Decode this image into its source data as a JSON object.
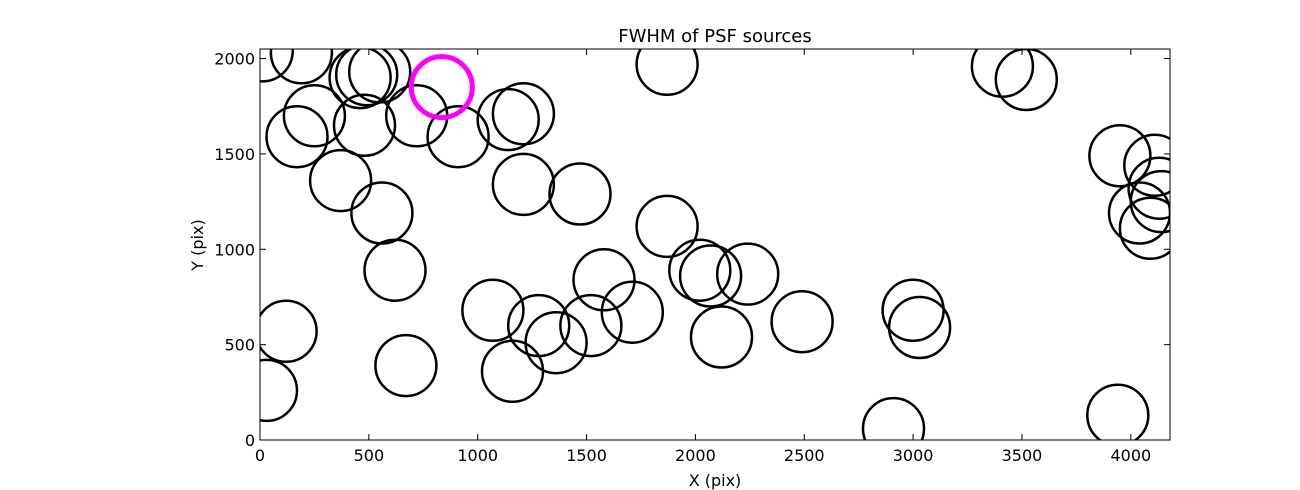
{
  "chart_data": {
    "type": "scatter",
    "title": "FWHM of PSF sources",
    "xlabel": "X (pix)",
    "ylabel": "Y (pix)",
    "xlim": [
      0,
      4180
    ],
    "ylim": [
      0,
      2050
    ],
    "xticks": [
      0,
      500,
      1000,
      1500,
      2000,
      2500,
      3000,
      3500,
      4000
    ],
    "yticks": [
      0,
      500,
      1000,
      1500,
      2000
    ],
    "grid": false,
    "marker": "circle (unfilled)",
    "source_radius": 140,
    "colors": {
      "source": "#000000",
      "highlight": "#ff00ff"
    },
    "series": [
      {
        "points": [
          [
            10,
            2040
          ],
          [
            190,
            2030
          ],
          [
            460,
            1900
          ],
          [
            490,
            1915
          ],
          [
            550,
            1930
          ],
          [
            250,
            1700
          ],
          [
            170,
            1590
          ],
          [
            480,
            1650
          ],
          [
            720,
            1700
          ],
          [
            910,
            1590
          ],
          [
            1140,
            1680
          ],
          [
            1210,
            1710
          ],
          [
            1870,
            1970
          ],
          [
            3410,
            1960
          ],
          [
            3520,
            1890
          ],
          [
            370,
            1360
          ],
          [
            560,
            1190
          ],
          [
            1210,
            1340
          ],
          [
            1470,
            1290
          ],
          [
            1870,
            1120
          ],
          [
            3950,
            1490
          ],
          [
            4040,
            1190
          ],
          [
            4090,
            1110
          ],
          [
            4110,
            1440
          ],
          [
            4130,
            1320
          ],
          [
            4140,
            1250
          ],
          [
            620,
            890
          ],
          [
            1580,
            840
          ],
          [
            2020,
            890
          ],
          [
            2070,
            860
          ],
          [
            2240,
            870
          ],
          [
            120,
            570
          ],
          [
            1070,
            680
          ],
          [
            1280,
            600
          ],
          [
            1360,
            510
          ],
          [
            1520,
            600
          ],
          [
            1710,
            670
          ],
          [
            2120,
            540
          ],
          [
            2490,
            620
          ],
          [
            3000,
            680
          ],
          [
            3030,
            590
          ],
          [
            670,
            390
          ],
          [
            1160,
            360
          ],
          [
            30,
            260
          ],
          [
            2910,
            60
          ],
          [
            3940,
            130
          ]
        ]
      },
      {
        "points": [
          [
            835,
            1850
          ]
        ]
      }
    ]
  }
}
